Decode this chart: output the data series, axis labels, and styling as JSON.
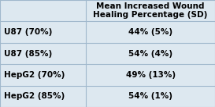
{
  "header": "Mean Increased Wound\nHealing Percentage (SD)",
  "rows": [
    [
      "U87 (70%)",
      "44% (5%)"
    ],
    [
      "U87 (85%)",
      "54% (4%)"
    ],
    [
      "HepG2 (70%)",
      "49% (13%)"
    ],
    [
      "HepG2 (85%)",
      "54% (1%)"
    ]
  ],
  "background_color": "#dde8f0",
  "line_color": "#a0b8cc",
  "text_color": "#000000",
  "font_size": 7.5,
  "header_font_size": 7.5,
  "col_split": 0.4,
  "figsize": [
    2.73,
    1.37
  ],
  "dpi": 100
}
